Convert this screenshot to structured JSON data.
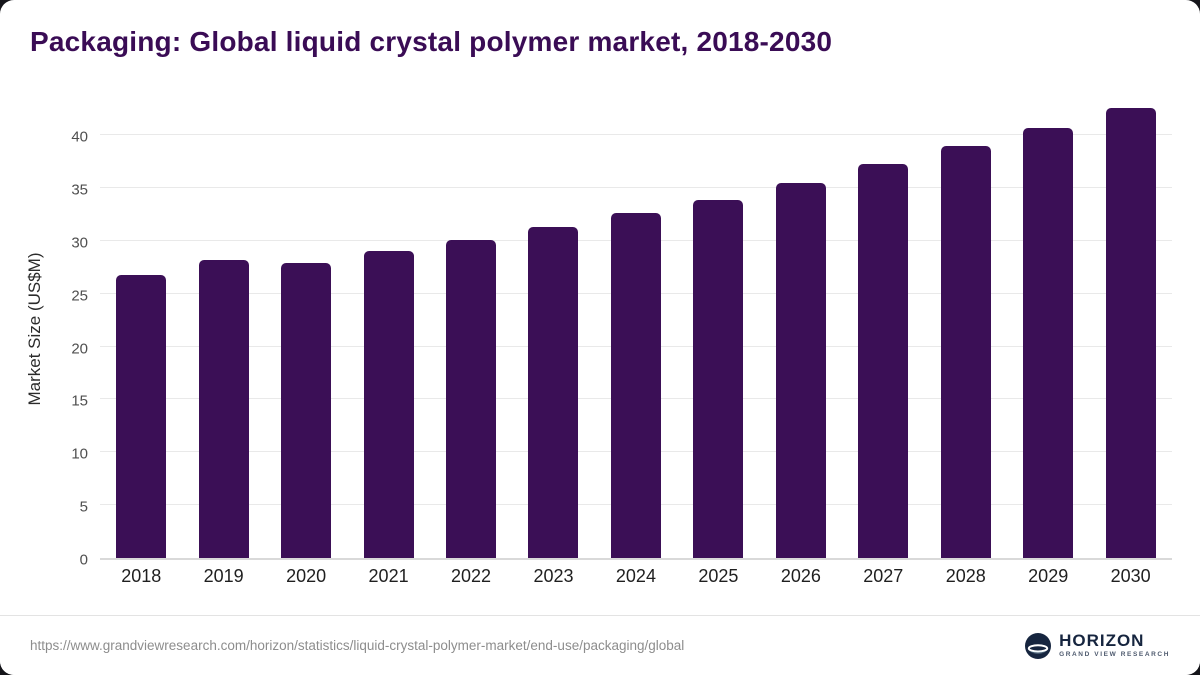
{
  "chart": {
    "title": "Packaging: Global liquid crystal polymer market, 2018-2030",
    "ylabel": "Market Size (US$M)"
  },
  "chart_data": {
    "type": "bar",
    "title": "Packaging: Global liquid crystal polymer market, 2018-2030",
    "xlabel": "",
    "ylabel": "Market Size (US$M)",
    "categories": [
      "2018",
      "2019",
      "2020",
      "2021",
      "2022",
      "2023",
      "2024",
      "2025",
      "2026",
      "2027",
      "2028",
      "2029",
      "2030"
    ],
    "values": [
      26.8,
      28.2,
      27.9,
      29.0,
      30.1,
      31.3,
      32.6,
      33.9,
      35.5,
      37.3,
      39.0,
      40.7,
      42.6
    ],
    "ylim": [
      0,
      43.5
    ],
    "yticks": [
      0,
      5,
      10,
      15,
      20,
      25,
      30,
      35,
      40
    ],
    "grid": "horizontal",
    "legend": "none",
    "bar_color": "#3b0f56"
  },
  "footer": {
    "source_url": "https://www.grandviewresearch.com/horizon/statistics/liquid-crystal-polymer-market/end-use/packaging/global",
    "logo_title": "HORIZON",
    "logo_subtitle": "GRAND VIEW RESEARCH"
  }
}
